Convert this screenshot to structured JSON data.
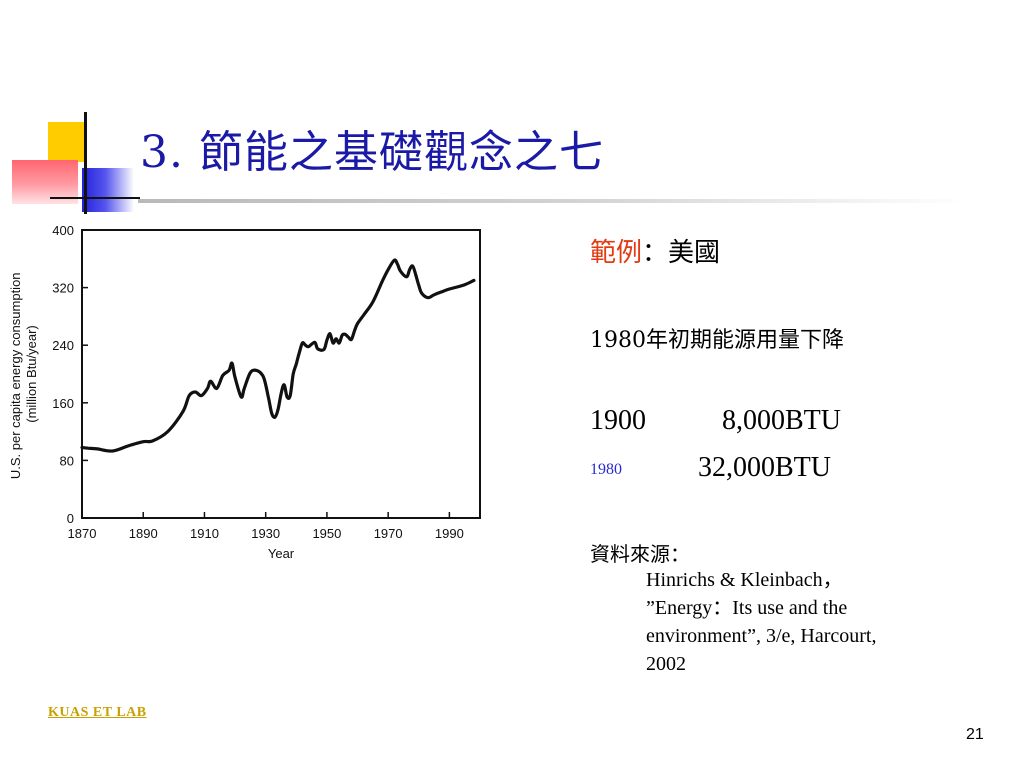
{
  "slide": {
    "title": "3. 節能之基礎觀念之七",
    "example_label": "範例",
    "example_sep": "：",
    "example_value": "美國",
    "line_1980": "1980年初期能源用量下降",
    "row1900": {
      "year": "1900",
      "value": "8,000BTU"
    },
    "row1980": {
      "year": "1980",
      "value": "32,000BTU"
    },
    "source_label": "資料來源：",
    "source_lines": [
      "Hinrichs & Kleinbach，",
      "”Energy：Its use and the",
      "environment”, 3/e, Harcourt,",
      "2002"
    ],
    "footer": "KUAS ET LAB",
    "page_number": "21"
  },
  "chart_data": {
    "type": "line",
    "title": "",
    "xlabel": "Year",
    "ylabel": "U.S. per capita energy consumption\n(million Btu/year)",
    "ylabel_lines": [
      "U.S. per capita energy consumption",
      "(million Btu/year)"
    ],
    "xlim": [
      1870,
      2000
    ],
    "ylim": [
      0,
      400
    ],
    "x_ticks": [
      1870,
      1890,
      1910,
      1930,
      1950,
      1970,
      1990
    ],
    "y_ticks": [
      0,
      80,
      160,
      240,
      320,
      400
    ],
    "grid": false,
    "series": [
      {
        "x": [
          1870,
          1872,
          1875,
          1880,
          1885,
          1890,
          1893,
          1898,
          1903,
          1905,
          1907,
          1909,
          1911,
          1912,
          1914,
          1916,
          1918,
          1919,
          1920,
          1922,
          1923,
          1925,
          1927,
          1929,
          1930,
          1931,
          1932,
          1933,
          1934,
          1935,
          1936,
          1937,
          1938,
          1939,
          1940,
          1941,
          1942,
          1943,
          1944,
          1946,
          1947,
          1949,
          1950,
          1951,
          1952,
          1953,
          1954,
          1955,
          1956,
          1957,
          1958,
          1959,
          1960,
          1962,
          1965,
          1968,
          1970,
          1972,
          1973,
          1974,
          1976,
          1977,
          1978,
          1979,
          1980,
          1981,
          1983,
          1985,
          1988,
          1990,
          1995,
          1998
        ],
        "y": [
          98,
          97,
          96,
          93,
          100,
          106,
          107,
          120,
          148,
          170,
          175,
          170,
          180,
          190,
          180,
          198,
          205,
          215,
          195,
          168,
          180,
          202,
          205,
          198,
          185,
          165,
          145,
          140,
          150,
          172,
          185,
          168,
          170,
          200,
          214,
          230,
          243,
          240,
          238,
          244,
          235,
          234,
          247,
          256,
          243,
          249,
          243,
          254,
          255,
          251,
          248,
          260,
          270,
          282,
          300,
          328,
          345,
          358,
          353,
          343,
          335,
          345,
          350,
          338,
          323,
          312,
          306,
          310,
          315,
          318,
          324,
          330
        ]
      }
    ]
  }
}
